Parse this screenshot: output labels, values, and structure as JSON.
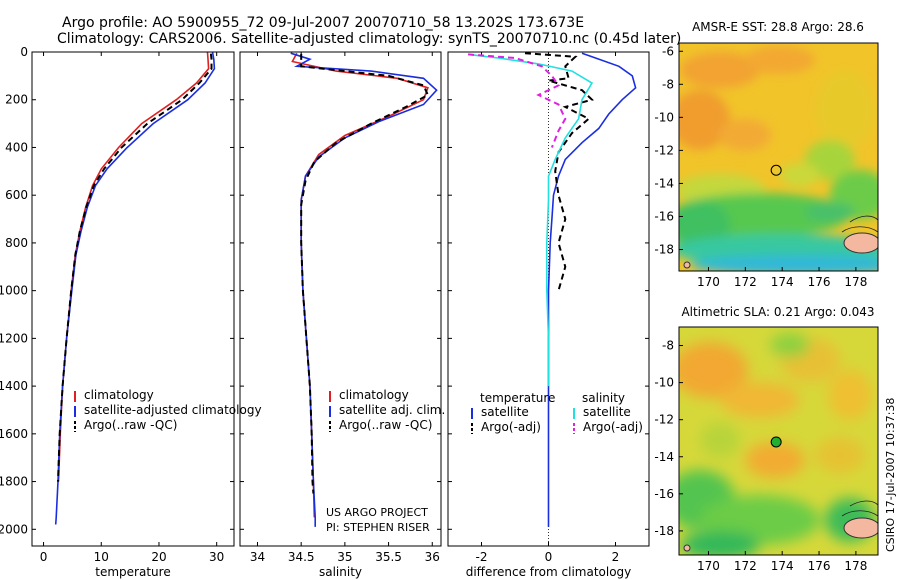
{
  "title_line1": "Argo profile: AO 5900955_72 09-Jul-2007 20070710_58 13.202S 173.673E",
  "title_line2": "Climatology: CARS2006. Satellite-adjusted climatology: synTS_20070710.nc (0.45d later)",
  "side_stamp": "CSIRO 17-Jul-2007 10:37:38",
  "colors": {
    "climatology": "#e02020",
    "satellite": "#1a2ee0",
    "argo": "#000000",
    "salinity_sat": "#22e0e0",
    "salinity_argo": "#e020e0"
  },
  "chart_data": [
    {
      "type": "line",
      "id": "temperature",
      "xlabel": "temperature",
      "xlim": [
        -2,
        33
      ],
      "ylim": [
        0,
        2070
      ],
      "xticks": [
        0,
        10,
        20,
        30
      ],
      "yticks": [
        0,
        200,
        400,
        600,
        800,
        1000,
        1200,
        1400,
        1600,
        1800,
        2000
      ],
      "legend": [
        "climatology",
        "satellite-adjusted climatology",
        "Argo(..raw -QC)"
      ],
      "series": [
        {
          "name": "climatology",
          "style": "solid",
          "color": "climatology",
          "points": [
            [
              28.4,
              2
            ],
            [
              28.5,
              30
            ],
            [
              28.6,
              70
            ],
            [
              26.5,
              130
            ],
            [
              23,
              200
            ],
            [
              17,
              300
            ],
            [
              13,
              400
            ],
            [
              10,
              490
            ],
            [
              8.5,
              560
            ],
            [
              7.3,
              650
            ],
            [
              6.3,
              750
            ],
            [
              5.5,
              850
            ],
            [
              4.8,
              1000
            ],
            [
              4,
              1200
            ],
            [
              3.3,
              1400
            ],
            [
              2.9,
              1600
            ],
            [
              2.6,
              1800
            ]
          ]
        },
        {
          "name": "satellite-adjusted climatology",
          "style": "solid",
          "color": "satellite",
          "points": [
            [
              29.3,
              2
            ],
            [
              29.5,
              30
            ],
            [
              29.6,
              70
            ],
            [
              28,
              130
            ],
            [
              25,
              200
            ],
            [
              19,
              300
            ],
            [
              14.5,
              400
            ],
            [
              11,
              490
            ],
            [
              9,
              560
            ],
            [
              7.6,
              650
            ],
            [
              6.5,
              750
            ],
            [
              5.6,
              850
            ],
            [
              4.9,
              1000
            ],
            [
              4,
              1200
            ],
            [
              3.3,
              1400
            ],
            [
              2.8,
              1600
            ],
            [
              2.5,
              1800
            ],
            [
              2.2,
              1950
            ],
            [
              2.1,
              1980
            ]
          ]
        },
        {
          "name": "Argo(..raw -QC)",
          "style": "dashed",
          "color": "argo",
          "points": [
            [
              29.0,
              7
            ],
            [
              29.1,
              30
            ],
            [
              29.1,
              70
            ],
            [
              27,
              130
            ],
            [
              24,
              200
            ],
            [
              18,
              300
            ],
            [
              13.5,
              400
            ],
            [
              10.5,
              490
            ],
            [
              8.7,
              560
            ],
            [
              7.4,
              650
            ],
            [
              6.3,
              750
            ],
            [
              5.5,
              850
            ],
            [
              4.8,
              1000
            ],
            [
              4,
              1200
            ],
            [
              3.3,
              1400
            ],
            [
              2.8,
              1600
            ],
            [
              2.5,
              1800
            ]
          ]
        }
      ]
    },
    {
      "type": "line",
      "id": "salinity",
      "xlabel": "salinity",
      "xlim": [
        33.8,
        36.1
      ],
      "ylim": [
        0,
        2070
      ],
      "xticks": [
        34,
        34.5,
        35,
        35.5,
        36
      ],
      "yticks": [
        0,
        200,
        400,
        600,
        800,
        1000,
        1200,
        1400,
        1600,
        1800,
        2000
      ],
      "legend": [
        "climatology",
        "satellite adj. clim.",
        "Argo(..raw -QC)"
      ],
      "annotation": [
        "US ARGO PROJECT",
        "PI: STEPHEN RISER"
      ],
      "series": [
        {
          "name": "climatology",
          "style": "solid",
          "color": "climatology",
          "points": [
            [
              34.45,
              5
            ],
            [
              34.4,
              40
            ],
            [
              34.9,
              80
            ],
            [
              35.6,
              110
            ],
            [
              35.95,
              150
            ],
            [
              35.9,
              200
            ],
            [
              35.5,
              270
            ],
            [
              35.0,
              350
            ],
            [
              34.7,
              430
            ],
            [
              34.55,
              520
            ],
            [
              34.5,
              620
            ],
            [
              34.5,
              800
            ],
            [
              34.52,
              1000
            ],
            [
              34.56,
              1200
            ],
            [
              34.6,
              1400
            ],
            [
              34.62,
              1600
            ],
            [
              34.64,
              1800
            ],
            [
              34.65,
              1950
            ]
          ]
        },
        {
          "name": "satellite adj. clim.",
          "style": "solid",
          "color": "satellite",
          "points": [
            [
              34.38,
              5
            ],
            [
              34.6,
              30
            ],
            [
              34.45,
              60
            ],
            [
              35.3,
              80
            ],
            [
              35.9,
              110
            ],
            [
              36.05,
              160
            ],
            [
              35.9,
              220
            ],
            [
              35.4,
              290
            ],
            [
              35.0,
              360
            ],
            [
              34.7,
              440
            ],
            [
              34.55,
              520
            ],
            [
              34.5,
              620
            ],
            [
              34.5,
              800
            ],
            [
              34.52,
              1000
            ],
            [
              34.56,
              1200
            ],
            [
              34.6,
              1400
            ],
            [
              34.62,
              1600
            ],
            [
              34.64,
              1800
            ],
            [
              34.66,
              1950
            ],
            [
              34.66,
              1990
            ]
          ]
        },
        {
          "name": "Argo(..raw -QC)",
          "style": "dashed",
          "color": "argo",
          "points": [
            [
              34.5,
              8
            ],
            [
              34.5,
              60
            ],
            [
              35.5,
              100
            ],
            [
              35.9,
              140
            ],
            [
              35.95,
              180
            ],
            [
              35.7,
              230
            ],
            [
              35.3,
              300
            ],
            [
              34.9,
              380
            ],
            [
              34.65,
              460
            ],
            [
              34.55,
              540
            ],
            [
              34.5,
              640
            ],
            [
              34.5,
              800
            ],
            [
              34.52,
              1000
            ],
            [
              34.56,
              1200
            ],
            [
              34.6,
              1400
            ],
            [
              34.62,
              1600
            ],
            [
              34.63,
              1800
            ],
            [
              34.64,
              1850
            ]
          ]
        }
      ]
    },
    {
      "type": "line",
      "id": "difference",
      "xlabel": "difference from climatology",
      "xlim": [
        -3.0,
        3.0
      ],
      "ylim": [
        0,
        2070
      ],
      "xticks": [
        -2,
        0,
        2
      ],
      "yticks": [
        0,
        200,
        400,
        600,
        800,
        1000,
        1200,
        1400,
        1600,
        1800,
        2000
      ],
      "legend_left": {
        "header": "temperature",
        "items": [
          "satellite",
          "Argo(-adj)"
        ]
      },
      "legend_right": {
        "header": "salinity",
        "items": [
          "satellite",
          "Argo(-adj)"
        ]
      },
      "series": [
        {
          "name": "temperature satellite",
          "style": "solid",
          "color": "satellite",
          "points": [
            [
              1.0,
              5
            ],
            [
              1.3,
              20
            ],
            [
              2.1,
              60
            ],
            [
              2.5,
              100
            ],
            [
              2.6,
              150
            ],
            [
              2.2,
              200
            ],
            [
              1.8,
              260
            ],
            [
              1.5,
              320
            ],
            [
              1.0,
              380
            ],
            [
              0.5,
              450
            ],
            [
              0.3,
              520
            ],
            [
              0.15,
              600
            ],
            [
              0.1,
              700
            ],
            [
              0.05,
              800
            ],
            [
              0.0,
              1000
            ],
            [
              0.0,
              1200
            ],
            [
              0.0,
              1400
            ],
            [
              0.0,
              1600
            ],
            [
              0.0,
              1800
            ],
            [
              0.0,
              1990
            ]
          ]
        },
        {
          "name": "temperature Argo(-adj)",
          "style": "dashed",
          "color": "argo",
          "points": [
            [
              -0.7,
              5
            ],
            [
              0.8,
              20
            ],
            [
              0.5,
              60
            ],
            [
              0.6,
              110
            ],
            [
              0.0,
              120
            ],
            [
              1.0,
              160
            ],
            [
              1.3,
              200
            ],
            [
              0.5,
              230
            ],
            [
              1.2,
              280
            ],
            [
              0.7,
              340
            ],
            [
              0.3,
              420
            ],
            [
              0.2,
              500
            ],
            [
              0.3,
              600
            ],
            [
              0.5,
              700
            ],
            [
              0.3,
              800
            ],
            [
              0.5,
              900
            ],
            [
              0.3,
              1000
            ]
          ]
        },
        {
          "name": "salinity satellite",
          "style": "solid",
          "color": "salinity_sat",
          "points": [
            [
              -2.4,
              10
            ],
            [
              -1.5,
              25
            ],
            [
              -0.3,
              50
            ],
            [
              0.7,
              80
            ],
            [
              1.3,
              130
            ],
            [
              1.0,
              200
            ],
            [
              0.9,
              280
            ],
            [
              0.5,
              360
            ],
            [
              0.2,
              450
            ],
            [
              0.0,
              520
            ],
            [
              0.0,
              620
            ],
            [
              -0.05,
              800
            ],
            [
              -0.05,
              1000
            ],
            [
              0.0,
              1200
            ],
            [
              0.0,
              1400
            ]
          ]
        },
        {
          "name": "salinity Argo(-adj)",
          "style": "dashed",
          "color": "salinity_argo",
          "points": [
            [
              -2.4,
              10
            ],
            [
              -1.0,
              25
            ],
            [
              -0.2,
              60
            ],
            [
              0.1,
              100
            ],
            [
              0.3,
              140
            ],
            [
              -0.3,
              180
            ],
            [
              0.3,
              220
            ],
            [
              0.5,
              280
            ],
            [
              0.3,
              330
            ],
            [
              0.1,
              400
            ]
          ]
        }
      ]
    },
    {
      "type": "heatmap",
      "id": "sst-map",
      "title": "AMSR-E SST: 28.8 Argo: 28.6",
      "xlim": [
        168.4,
        179.2
      ],
      "ylim": [
        -19.3,
        -5.5
      ],
      "xticks": [
        170,
        172,
        174,
        176,
        178
      ],
      "yticks": [
        -6,
        -8,
        -10,
        -12,
        -14,
        -16,
        -18
      ],
      "marker": {
        "lon": 173.673,
        "lat": -13.202
      }
    },
    {
      "type": "heatmap",
      "id": "sla-map",
      "title": "Altimetric SLA: 0.21 Argo: 0.043",
      "xlim": [
        168.4,
        179.2
      ],
      "ylim": [
        -19.3,
        -7.0
      ],
      "xticks": [
        170,
        172,
        174,
        176,
        178
      ],
      "yticks": [
        -8,
        -10,
        -12,
        -14,
        -16,
        -18
      ],
      "marker": {
        "lon": 173.673,
        "lat": -13.202
      }
    }
  ]
}
